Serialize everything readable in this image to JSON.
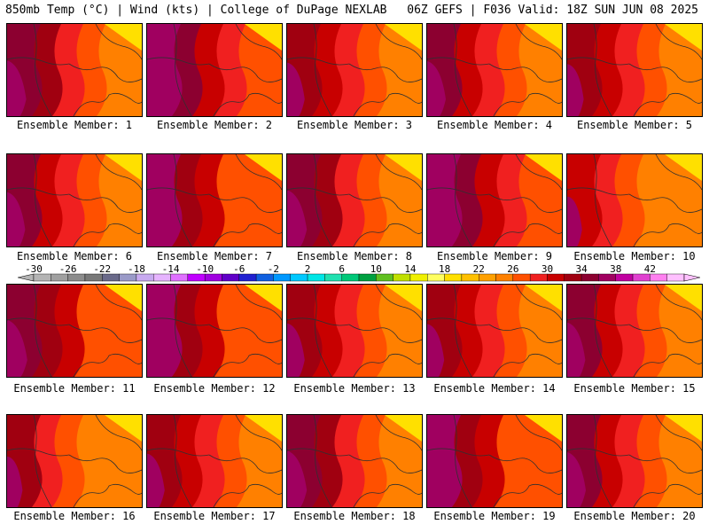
{
  "header": {
    "left": "850mb Temp (°C) | Wind (kts) | College of DuPage NEXLAB",
    "right": "06Z GEFS | F036 Valid: 18Z SUN JUN 08 2025"
  },
  "panels": [
    {
      "label": "Ensemble Member: 1",
      "warmth": 0.72
    },
    {
      "label": "Ensemble Member: 2",
      "warmth": 0.85
    },
    {
      "label": "Ensemble Member: 3",
      "warmth": 0.66
    },
    {
      "label": "Ensemble Member: 4",
      "warmth": 0.7
    },
    {
      "label": "Ensemble Member: 5",
      "warmth": 0.62
    },
    {
      "label": "Ensemble Member: 6",
      "warmth": 0.68
    },
    {
      "label": "Ensemble Member: 7",
      "warmth": 0.8
    },
    {
      "label": "Ensemble Member: 8",
      "warmth": 0.74
    },
    {
      "label": "Ensemble Member: 9",
      "warmth": 0.82
    },
    {
      "label": "Ensemble Member: 10",
      "warmth": 0.56
    },
    {
      "label": "Ensemble Member: 11",
      "warmth": 0.76
    },
    {
      "label": "Ensemble Member: 12",
      "warmth": 0.78
    },
    {
      "label": "Ensemble Member: 13",
      "warmth": 0.66
    },
    {
      "label": "Ensemble Member: 14",
      "warmth": 0.64
    },
    {
      "label": "Ensemble Member: 15",
      "warmth": 0.68
    },
    {
      "label": "Ensemble Member: 16",
      "warmth": 0.58
    },
    {
      "label": "Ensemble Member: 17",
      "warmth": 0.66
    },
    {
      "label": "Ensemble Member: 18",
      "warmth": 0.74
    },
    {
      "label": "Ensemble Member: 19",
      "warmth": 0.8
    },
    {
      "label": "Ensemble Member: 20",
      "warmth": 0.7
    }
  ],
  "colorbar": {
    "labels": [
      "-30",
      "-26",
      "-22",
      "-18",
      "-14",
      "-10",
      "-6",
      "-2",
      "2",
      "6",
      "10",
      "14",
      "18",
      "22",
      "26",
      "30",
      "34",
      "38",
      "42"
    ],
    "colors": [
      "#b4b4b4",
      "#a0a0a0",
      "#8c8c8c",
      "#787878",
      "#6a6a8a",
      "#9a9ac8",
      "#c8aaf0",
      "#e6b4ff",
      "#e070ff",
      "#c000ff",
      "#a000e0",
      "#6000c8",
      "#2020d0",
      "#1060e0",
      "#0098ff",
      "#00c8ff",
      "#00e6e6",
      "#20e0b0",
      "#00c878",
      "#00a040",
      "#60c020",
      "#c0e000",
      "#f0f000",
      "#ffff60",
      "#ffe000",
      "#ffc000",
      "#ffa000",
      "#ff8000",
      "#ff5000",
      "#f02020",
      "#c80000",
      "#a00010",
      "#8c0030",
      "#a00060",
      "#c000a0",
      "#e040d0",
      "#ff80f0",
      "#ffc0ff"
    ]
  }
}
